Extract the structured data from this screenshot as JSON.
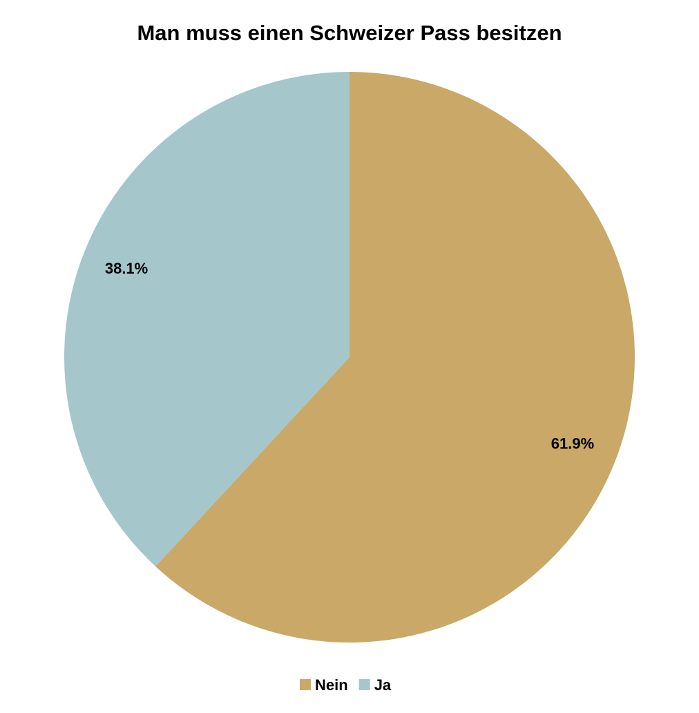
{
  "chart_data": {
    "type": "pie",
    "title": "Man muss einen Schweizer Pass besitzen",
    "categories": [
      "Nein",
      "Ja"
    ],
    "values": [
      61.9,
      38.1
    ],
    "value_labels": [
      "61.9%",
      "38.1%"
    ],
    "colors": [
      "#c9a868",
      "#a5c7cc"
    ],
    "legend": "bottom"
  }
}
